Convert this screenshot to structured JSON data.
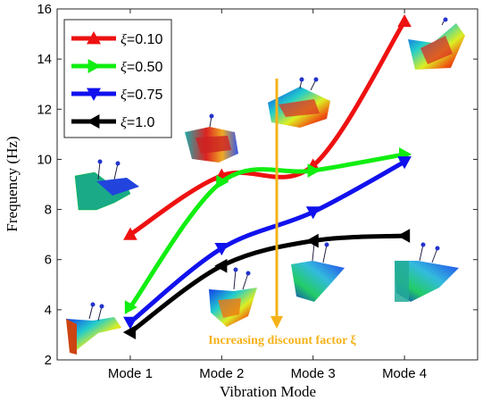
{
  "chart_data": {
    "type": "line",
    "xlabel": "Vibration Mode",
    "ylabel": "Frequency (Hz)",
    "categories": [
      "Mode 1",
      "Mode 2",
      "Mode 3",
      "Mode 4"
    ],
    "x_range": [
      0.2,
      4.8
    ],
    "ylim": [
      2,
      16
    ],
    "yticks": [
      2,
      4,
      6,
      8,
      10,
      12,
      14,
      16
    ],
    "grid": false,
    "legend_placement": "top-left",
    "series": [
      {
        "name": "ξ=0.10",
        "marker": "triangle-up",
        "color": "#ee1111",
        "values": [
          7.0,
          9.35,
          9.75,
          15.5
        ]
      },
      {
        "name": "ξ=0.50",
        "marker": "triangle-right",
        "color": "#11ee11",
        "values": [
          4.1,
          9.1,
          9.55,
          10.2
        ]
      },
      {
        "name": "ξ=0.75",
        "marker": "triangle-down",
        "color": "#1111ee",
        "values": [
          3.5,
          6.45,
          7.9,
          9.9
        ]
      },
      {
        "name": "ξ=1.0",
        "marker": "triangle-left",
        "color": "#000000",
        "values": [
          3.1,
          5.75,
          6.75,
          6.95
        ]
      }
    ],
    "annotation": {
      "text": "Increasing discount factor ξ",
      "color": "#f5b21a"
    }
  }
}
